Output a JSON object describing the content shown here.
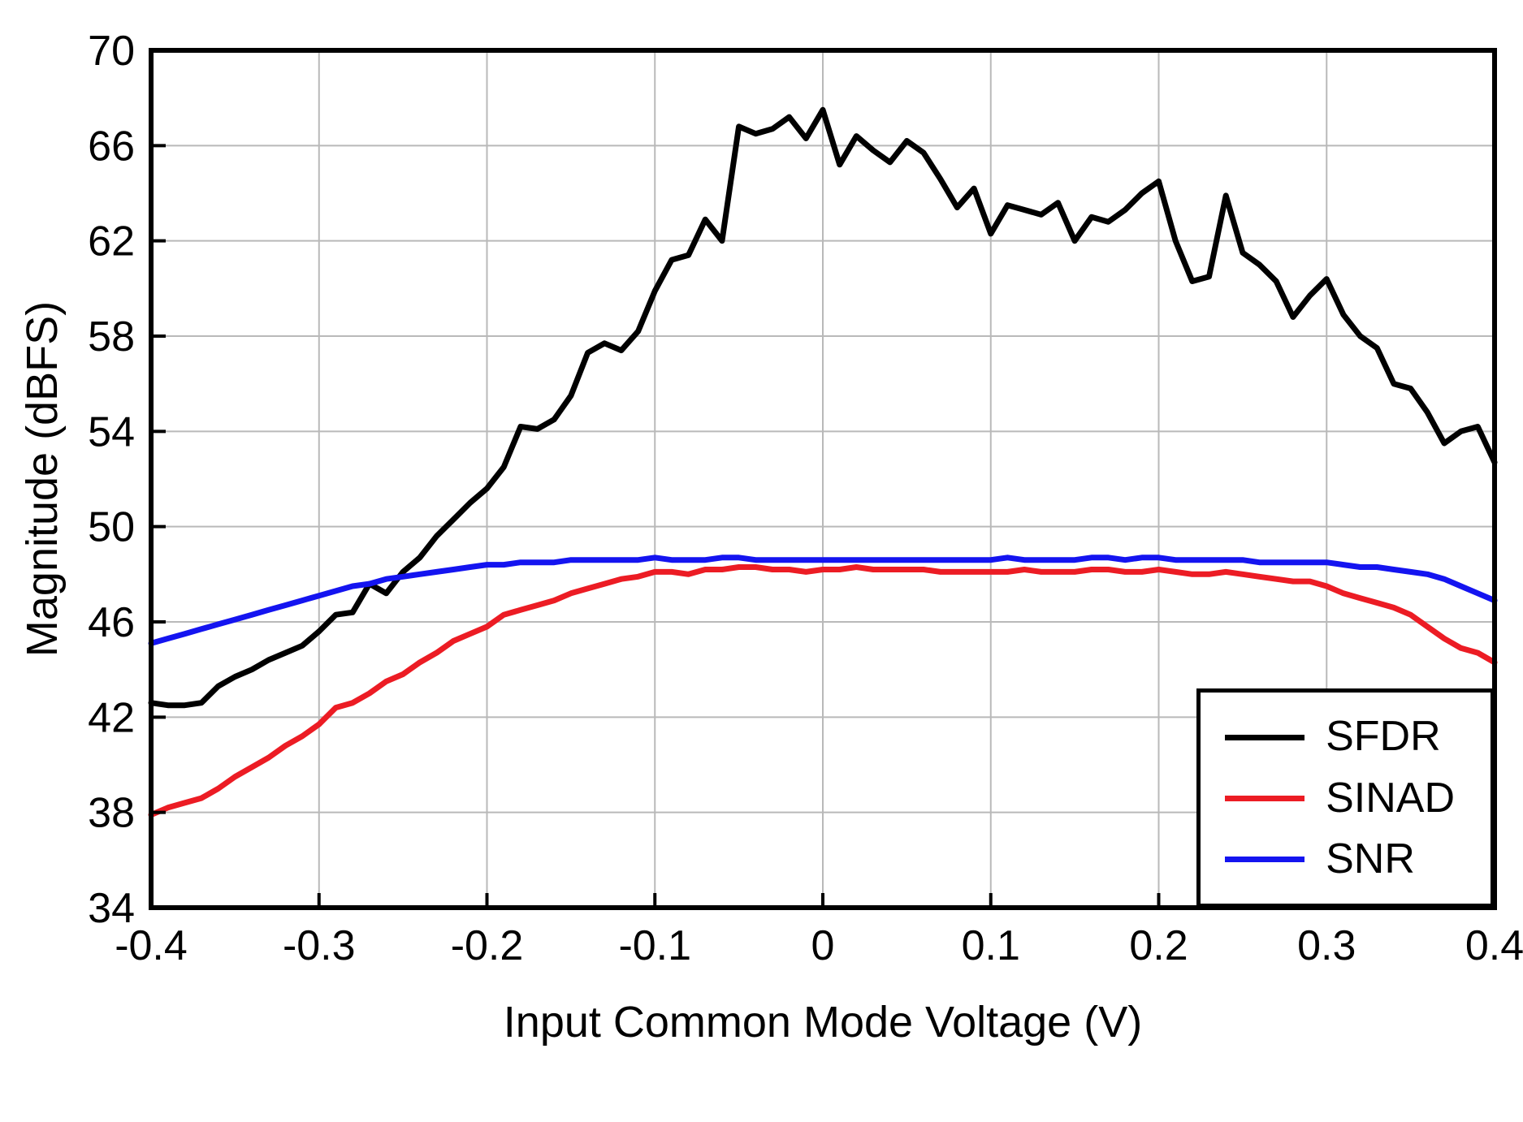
{
  "chart_data": {
    "type": "line",
    "title": "",
    "xlabel": "Input Common Mode Voltage  (V)",
    "ylabel": "Magnitude  (dBFS)",
    "xlim": [
      -0.4,
      0.4
    ],
    "ylim": [
      34,
      70
    ],
    "grid": true,
    "legend_position": "lower right",
    "frame_color": "#000000",
    "grid_color": "#b9b9b9",
    "xticks": [
      -0.4,
      -0.3,
      -0.2,
      -0.1,
      0,
      0.1,
      0.2,
      0.3,
      0.4
    ],
    "xtick_labels": [
      "-0.4",
      "-0.3",
      "-0.2",
      "-0.1",
      "0",
      "0.1",
      "0.2",
      "0.3",
      "0.4"
    ],
    "yticks": [
      34,
      38,
      42,
      46,
      50,
      54,
      58,
      62,
      66,
      70
    ],
    "ytick_labels": [
      "34",
      "38",
      "42",
      "46",
      "50",
      "54",
      "58",
      "62",
      "66",
      "70"
    ],
    "x": [
      -0.4,
      -0.39,
      -0.38,
      -0.37,
      -0.36,
      -0.35,
      -0.34,
      -0.33,
      -0.32,
      -0.31,
      -0.3,
      -0.29,
      -0.28,
      -0.27,
      -0.26,
      -0.25,
      -0.24,
      -0.23,
      -0.22,
      -0.21,
      -0.2,
      -0.19,
      -0.18,
      -0.17,
      -0.16,
      -0.15,
      -0.14,
      -0.13,
      -0.12,
      -0.11,
      -0.1,
      -0.09,
      -0.08,
      -0.07,
      -0.06,
      -0.05,
      -0.04,
      -0.03,
      -0.02,
      -0.01,
      0,
      0.01,
      0.02,
      0.03,
      0.04,
      0.05,
      0.06,
      0.07,
      0.08,
      0.09,
      0.1,
      0.11,
      0.12,
      0.13,
      0.14,
      0.15,
      0.16,
      0.17,
      0.18,
      0.19,
      0.2,
      0.21,
      0.22,
      0.23,
      0.24,
      0.25,
      0.26,
      0.27,
      0.28,
      0.29,
      0.3,
      0.31,
      0.32,
      0.33,
      0.34,
      0.35,
      0.36,
      0.37,
      0.38,
      0.39,
      0.4
    ],
    "series": [
      {
        "name": "SFDR",
        "color": "#000000",
        "values": [
          42.6,
          42.5,
          42.5,
          42.6,
          43.3,
          43.7,
          44.0,
          44.4,
          44.7,
          45.0,
          45.6,
          46.3,
          46.4,
          47.6,
          47.2,
          48.1,
          48.7,
          49.6,
          50.3,
          51.0,
          51.6,
          52.5,
          54.2,
          54.1,
          54.5,
          55.5,
          57.3,
          57.7,
          57.4,
          58.2,
          59.9,
          61.2,
          61.4,
          62.9,
          62.0,
          66.8,
          66.5,
          66.7,
          67.2,
          66.3,
          67.5,
          65.2,
          66.4,
          65.8,
          65.3,
          66.2,
          65.7,
          64.6,
          63.4,
          64.2,
          62.3,
          63.5,
          63.3,
          63.1,
          63.6,
          62.0,
          63.0,
          62.8,
          63.3,
          64.0,
          64.5,
          62.0,
          60.3,
          60.5,
          63.9,
          61.5,
          61.0,
          60.3,
          58.8,
          59.7,
          60.4,
          58.9,
          58.0,
          57.5,
          56.0,
          55.8,
          54.8,
          53.5,
          54.0,
          54.2,
          52.7
        ]
      },
      {
        "name": "SINAD",
        "color": "#ec1c24",
        "values": [
          37.9,
          38.2,
          38.4,
          38.6,
          39.0,
          39.5,
          39.9,
          40.3,
          40.8,
          41.2,
          41.7,
          42.4,
          42.6,
          43.0,
          43.5,
          43.8,
          44.3,
          44.7,
          45.2,
          45.5,
          45.8,
          46.3,
          46.5,
          46.7,
          46.9,
          47.2,
          47.4,
          47.6,
          47.8,
          47.9,
          48.1,
          48.1,
          48.0,
          48.2,
          48.2,
          48.3,
          48.3,
          48.2,
          48.2,
          48.1,
          48.2,
          48.2,
          48.3,
          48.2,
          48.2,
          48.2,
          48.2,
          48.1,
          48.1,
          48.1,
          48.1,
          48.1,
          48.2,
          48.1,
          48.1,
          48.1,
          48.2,
          48.2,
          48.1,
          48.1,
          48.2,
          48.1,
          48.0,
          48.0,
          48.1,
          48.0,
          47.9,
          47.8,
          47.7,
          47.7,
          47.5,
          47.2,
          47.0,
          46.8,
          46.6,
          46.3,
          45.8,
          45.3,
          44.9,
          44.7,
          44.3
        ]
      },
      {
        "name": "SNR",
        "color": "#1414f0",
        "values": [
          45.1,
          45.3,
          45.5,
          45.7,
          45.9,
          46.1,
          46.3,
          46.5,
          46.7,
          46.9,
          47.1,
          47.3,
          47.5,
          47.6,
          47.8,
          47.9,
          48.0,
          48.1,
          48.2,
          48.3,
          48.4,
          48.4,
          48.5,
          48.5,
          48.5,
          48.6,
          48.6,
          48.6,
          48.6,
          48.6,
          48.7,
          48.6,
          48.6,
          48.6,
          48.7,
          48.7,
          48.6,
          48.6,
          48.6,
          48.6,
          48.6,
          48.6,
          48.6,
          48.6,
          48.6,
          48.6,
          48.6,
          48.6,
          48.6,
          48.6,
          48.6,
          48.7,
          48.6,
          48.6,
          48.6,
          48.6,
          48.7,
          48.7,
          48.6,
          48.7,
          48.7,
          48.6,
          48.6,
          48.6,
          48.6,
          48.6,
          48.5,
          48.5,
          48.5,
          48.5,
          48.5,
          48.4,
          48.3,
          48.3,
          48.2,
          48.1,
          48.0,
          47.8,
          47.5,
          47.2,
          46.9
        ]
      }
    ]
  }
}
